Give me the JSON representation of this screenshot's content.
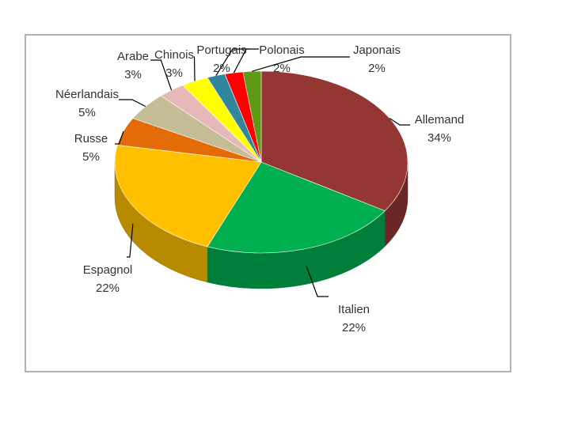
{
  "chart_data": {
    "type": "pie",
    "categories": [
      "Allemand",
      "Italien",
      "Espagnol",
      "Russe",
      "Néerlandais",
      "Arabe",
      "Chinois",
      "Portugais",
      "Polonais",
      "Japonais"
    ],
    "values": [
      34,
      22,
      22,
      5,
      5,
      3,
      3,
      2,
      2,
      2
    ],
    "value_labels": [
      "34%",
      "22%",
      "22%",
      "5%",
      "5%",
      "3%",
      "3%",
      "2%",
      "2%",
      "2%"
    ],
    "colors": [
      "#943634",
      "#00b050",
      "#ffc000",
      "#e36c09",
      "#c4bd97",
      "#e6b9b8",
      "#ffff00",
      "#31859c",
      "#ff0000",
      "#5f9a16"
    ]
  }
}
